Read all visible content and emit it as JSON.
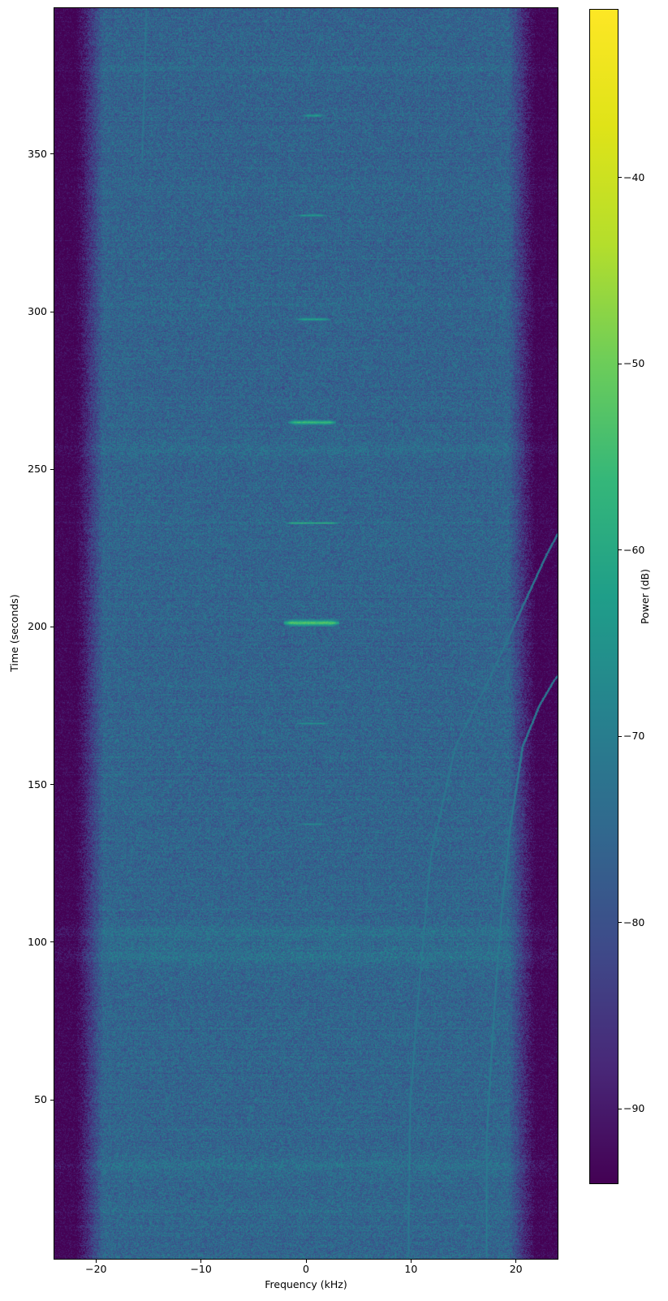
{
  "chart_data": {
    "type": "heatmap",
    "title": "",
    "xlabel": "Frequency (kHz)",
    "ylabel": "Time (seconds)",
    "x_range_khz": [
      -23.97,
      23.97
    ],
    "y_range_s": [
      -0.45,
      396.3
    ],
    "x_ticks": [
      {
        "value": -20,
        "label": "−20"
      },
      {
        "value": -10,
        "label": "−10"
      },
      {
        "value": 0,
        "label": "0"
      },
      {
        "value": 10,
        "label": "10"
      },
      {
        "value": 20,
        "label": "20"
      }
    ],
    "y_ticks": [
      {
        "value": 50,
        "label": "50"
      },
      {
        "value": 100,
        "label": "100"
      },
      {
        "value": 150,
        "label": "150"
      },
      {
        "value": 200,
        "label": "200"
      },
      {
        "value": 250,
        "label": "250"
      },
      {
        "value": 300,
        "label": "300"
      },
      {
        "value": 350,
        "label": "350"
      }
    ],
    "colorbar": {
      "label": "Power (dB)",
      "vmin": -94,
      "vmax": -31,
      "ticks": [
        {
          "value": -40,
          "label": "−40"
        },
        {
          "value": -50,
          "label": "−50"
        },
        {
          "value": -60,
          "label": "−60"
        },
        {
          "value": -70,
          "label": "−70"
        },
        {
          "value": -80,
          "label": "−80"
        },
        {
          "value": -90,
          "label": "−90"
        }
      ]
    },
    "colormap": {
      "name": "viridis",
      "stops": [
        [
          0.0,
          [
            68,
            1,
            84
          ]
        ],
        [
          0.1,
          [
            72,
            40,
            120
          ]
        ],
        [
          0.2,
          [
            62,
            74,
            137
          ]
        ],
        [
          0.3,
          [
            49,
            104,
            142
          ]
        ],
        [
          0.4,
          [
            38,
            130,
            142
          ]
        ],
        [
          0.5,
          [
            31,
            158,
            137
          ]
        ],
        [
          0.6,
          [
            53,
            183,
            121
          ]
        ],
        [
          0.7,
          [
            109,
            205,
            89
          ]
        ],
        [
          0.8,
          [
            180,
            222,
            44
          ]
        ],
        [
          0.9,
          [
            223,
            227,
            24
          ]
        ],
        [
          1.0,
          [
            253,
            231,
            37
          ]
        ]
      ]
    },
    "noise_floor": {
      "body_level_db": -76.0,
      "bottom_extra_db": 0.7,
      "noise_amplitude_db": 6.2,
      "flat_khz": 19.3,
      "floor_khz": 21.9,
      "floor_level_db": -95.5
    },
    "bursts": [
      {
        "time_s": 362.4,
        "f_start_khz": -0.5,
        "f_end_khz": 1.8,
        "level_db": -63.0,
        "sigma_rows": 1.2
      },
      {
        "time_s": 330.7,
        "f_start_khz": -1.0,
        "f_end_khz": 2.0,
        "level_db": -64.0,
        "sigma_rows": 1.2
      },
      {
        "time_s": 297.7,
        "f_start_khz": -1.0,
        "f_end_khz": 2.3,
        "level_db": -62.0,
        "sigma_rows": 1.3
      },
      {
        "time_s": 265.1,
        "f_start_khz": -1.7,
        "f_end_khz": 2.8,
        "level_db": -56.0,
        "sigma_rows": 1.5
      },
      {
        "time_s": 233.1,
        "f_start_khz": -1.9,
        "f_end_khz": 3.1,
        "level_db": -57.0,
        "sigma_rows": 0.7
      },
      {
        "time_s": 201.5,
        "f_start_khz": -2.1,
        "f_end_khz": 3.1,
        "level_db": -52.5,
        "sigma_rows": 1.8
      },
      {
        "time_s": 169.4,
        "f_start_khz": -1.1,
        "f_end_khz": 2.3,
        "level_db": -65.0,
        "sigma_rows": 1.0
      },
      {
        "time_s": 137.5,
        "f_start_khz": -0.8,
        "f_end_khz": 2.0,
        "level_db": -66.0,
        "sigma_rows": 1.0
      }
    ],
    "noise_bands": [
      {
        "time_s": 377.0,
        "half_width_s": 1.2,
        "delta_db": 0.9
      },
      {
        "time_s": 339.0,
        "half_width_s": 1.5,
        "delta_db": 1.1
      },
      {
        "time_s": 302.0,
        "half_width_s": 1.5,
        "delta_db": 1.1
      },
      {
        "time_s": 256.5,
        "half_width_s": 2.2,
        "delta_db": 1.8
      },
      {
        "time_s": 233.0,
        "half_width_s": 1.2,
        "delta_db": 0.8
      },
      {
        "time_s": 103.0,
        "half_width_s": 2.2,
        "delta_db": 2.6
      },
      {
        "time_s": 95.5,
        "half_width_s": 2.8,
        "delta_db": 2.9
      },
      {
        "time_s": 29.0,
        "half_width_s": 2.2,
        "delta_db": 2.3
      },
      {
        "time_s": 15.0,
        "half_width_s": 1.5,
        "delta_db": 1.1
      }
    ],
    "chirps": [
      {
        "level_db": -69.5,
        "points": [
          [
            0,
            9.7
          ],
          [
            50,
            9.9
          ],
          [
            84,
            10.7
          ],
          [
            118,
            11.6
          ],
          [
            128,
            11.9
          ],
          [
            162,
            14.2
          ],
          [
            184,
            17.5
          ],
          [
            223,
            22.9
          ],
          [
            236,
            25.0
          ]
        ]
      },
      {
        "level_db": -69.0,
        "points": [
          [
            0,
            17.15
          ],
          [
            40,
            17.2
          ],
          [
            84,
            18.0
          ],
          [
            110,
            18.6
          ],
          [
            136,
            19.4
          ],
          [
            162,
            20.6
          ],
          [
            175,
            22.2
          ],
          [
            183,
            23.6
          ],
          [
            189,
            25.0
          ]
        ]
      },
      {
        "level_db": -70.5,
        "points": [
          [
            348,
            -15.65
          ],
          [
            370,
            -15.45
          ],
          [
            396.3,
            -15.25
          ]
        ]
      }
    ],
    "seed": 1337
  },
  "layout_text": {
    "xlabel": "Frequency (kHz)",
    "ylabel": "Time (seconds)",
    "cblabel": "Power (dB)"
  }
}
